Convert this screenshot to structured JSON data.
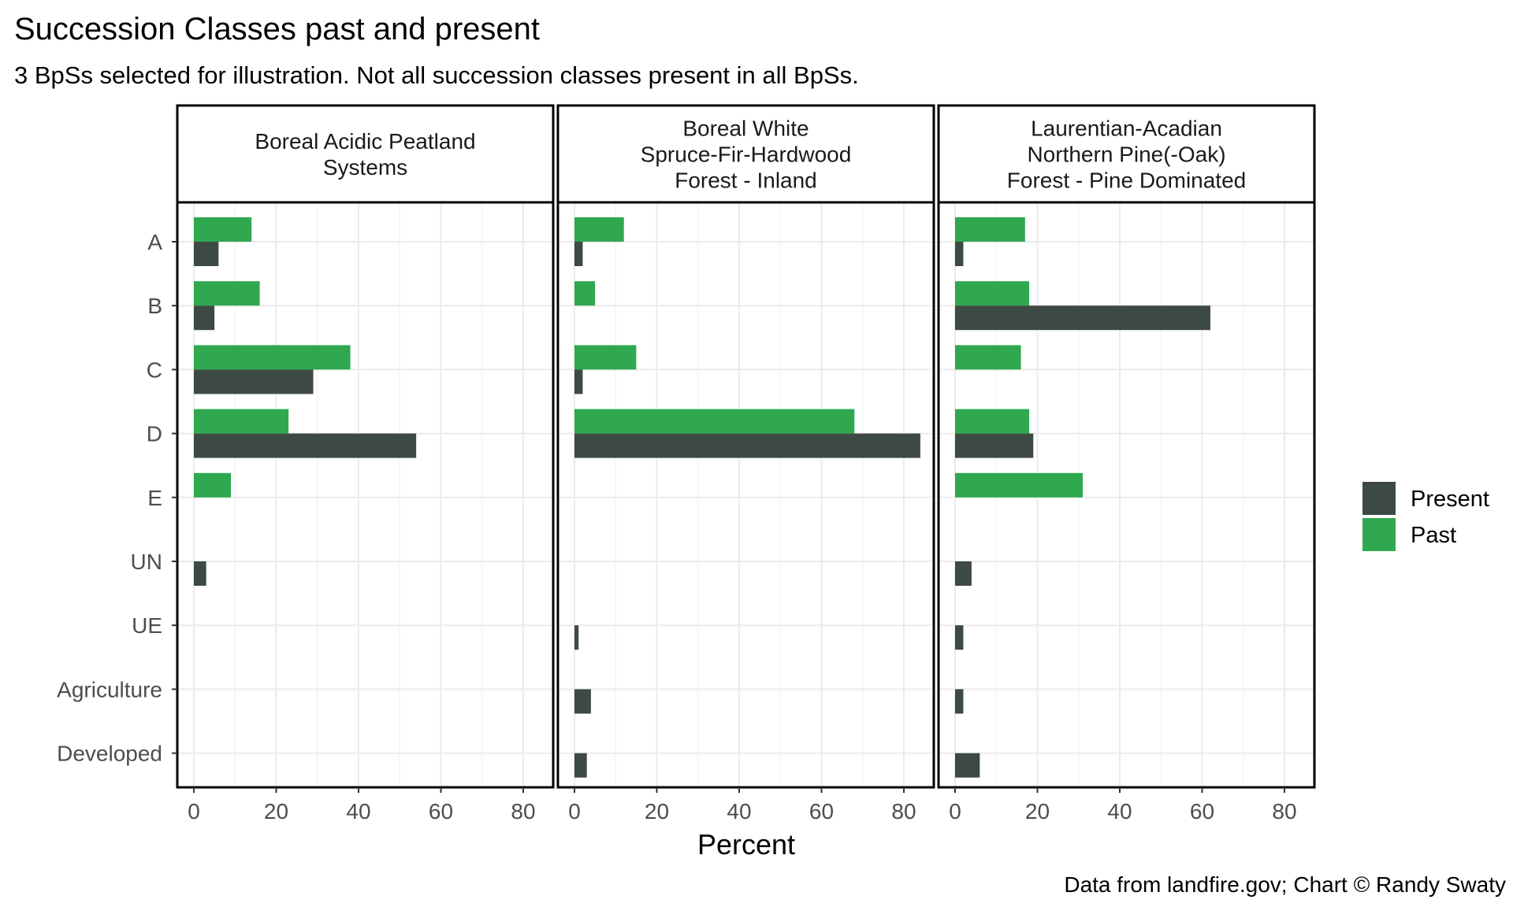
{
  "chart_data": {
    "type": "bar",
    "orientation": "horizontal",
    "title": "Succession Classes past and present",
    "subtitle": "3 BpSs selected for illustration. Not all succession classes present in all BpSs.",
    "xlabel": "Percent",
    "ylabel": "",
    "caption": "Data from landfire.gov; Chart © Randy Swaty",
    "xlim": [
      0,
      85
    ],
    "xticks": [
      "0",
      "20",
      "40",
      "60",
      "80"
    ],
    "xtick_values": [
      0,
      20,
      40,
      60,
      80
    ],
    "grid": true,
    "legend_position": "right",
    "categories": [
      "A",
      "B",
      "C",
      "D",
      "E",
      "UN",
      "UE",
      "Agriculture",
      "Developed"
    ],
    "series_styles": [
      {
        "name": "Present",
        "color": "#3d4a43"
      },
      {
        "name": "Past",
        "color": "#2fa84f"
      }
    ],
    "panels": [
      {
        "label_lines": [
          "Boreal Acidic Peatland",
          "Systems"
        ],
        "series": [
          {
            "name": "Past",
            "values": [
              14,
              16,
              38,
              23,
              9,
              null,
              null,
              null,
              null
            ]
          },
          {
            "name": "Present",
            "values": [
              6,
              5,
              29,
              54,
              null,
              3,
              null,
              null,
              null
            ]
          }
        ]
      },
      {
        "label_lines": [
          "Boreal White",
          "Spruce-Fir-Hardwood",
          "Forest - Inland"
        ],
        "series": [
          {
            "name": "Past",
            "values": [
              12,
              5,
              15,
              68,
              null,
              null,
              null,
              null,
              null
            ]
          },
          {
            "name": "Present",
            "values": [
              2,
              null,
              2,
              84,
              null,
              null,
              1,
              4,
              3
            ]
          }
        ]
      },
      {
        "label_lines": [
          "Laurentian-Acadian",
          "Northern Pine(-Oak)",
          "Forest - Pine Dominated"
        ],
        "series": [
          {
            "name": "Past",
            "values": [
              17,
              18,
              16,
              18,
              31,
              null,
              null,
              null,
              null
            ]
          },
          {
            "name": "Present",
            "values": [
              2,
              62,
              null,
              19,
              null,
              4,
              2,
              2,
              6
            ]
          }
        ]
      }
    ],
    "legend": [
      {
        "label": "Present",
        "color": "#3d4a43"
      },
      {
        "label": "Past",
        "color": "#2fa84f"
      }
    ]
  }
}
